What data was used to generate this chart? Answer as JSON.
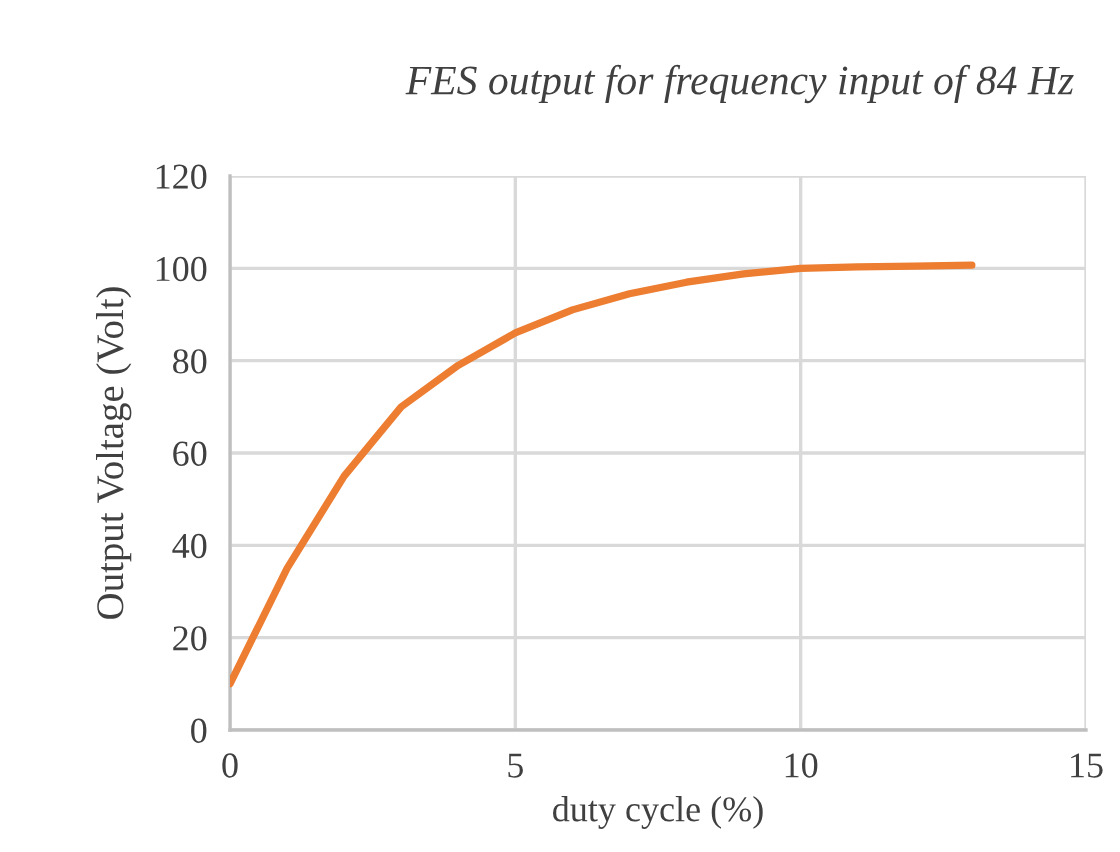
{
  "chart_data": {
    "type": "line",
    "title": "FES output for frequency input of 84 Hz",
    "xlabel": "duty cycle (%)",
    "ylabel": "Output Voltage (Volt)",
    "x": [
      0,
      1,
      2,
      3,
      4,
      5,
      6,
      7,
      8,
      9,
      10,
      11,
      12,
      13
    ],
    "series": [
      {
        "color": "#ed7d31",
        "values": [
          10,
          35,
          55,
          70,
          79,
          86,
          91,
          94.5,
          97,
          98.8,
          100,
          100.3,
          100.5,
          100.7
        ]
      }
    ],
    "xlim": [
      0,
      15
    ],
    "xticks": [
      0,
      5,
      10,
      15
    ],
    "ylim": [
      0,
      120
    ],
    "yticks": [
      0,
      20,
      40,
      60,
      80,
      100,
      120
    ],
    "grid": true,
    "marker": "none",
    "line_style": "solid"
  }
}
